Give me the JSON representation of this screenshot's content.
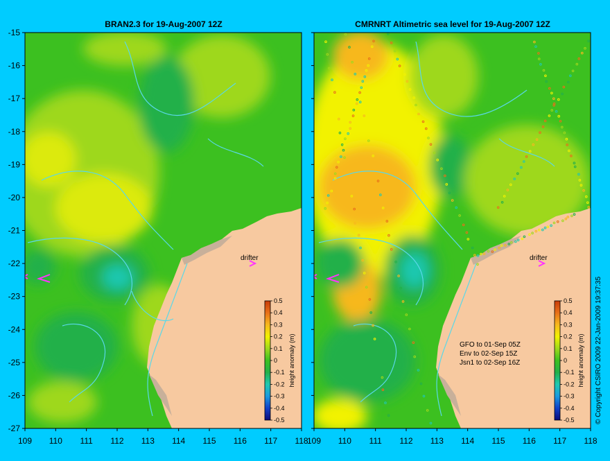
{
  "panels": [
    {
      "title": "BRAN2.3 for 19-Aug-2007 12Z",
      "drifter_label": "drifter",
      "has_obs": false
    },
    {
      "title": "CMRNRT Altimetric sea level  for 19-Aug-2007 12Z",
      "drifter_label": "drifter",
      "has_obs": true,
      "satellite_notes": [
        "GFO to 01-Sep 05Z",
        "Env to 02-Sep 15Z",
        "Jsn1 to 02-Sep 16Z"
      ]
    }
  ],
  "axes": {
    "lon_ticks": [
      "109",
      "110",
      "111",
      "112",
      "113",
      "114",
      "115",
      "116",
      "117",
      "118"
    ],
    "lat_ticks": [
      "-15",
      "-16",
      "-17",
      "-18",
      "-19",
      "-20",
      "-21",
      "-22",
      "-23",
      "-24",
      "-25",
      "-26",
      "-27"
    ],
    "lon_range": [
      109,
      118
    ],
    "lat_range": [
      -15,
      -27
    ]
  },
  "colorbar": {
    "label": "height anomaly (m)",
    "ticks": [
      "0.5",
      "0.4",
      "0.3",
      "0.2",
      "0.1",
      "0",
      "-0.1",
      "-0.2",
      "-0.3",
      "-0.4",
      "-0.5"
    ],
    "colors": [
      "#0b0b7a",
      "#1140c8",
      "#1a9adf",
      "#1fc8b0",
      "#23b04a",
      "#3cc020",
      "#9ed81c",
      "#f2f200",
      "#f7b81e",
      "#e8701a",
      "#c83c08"
    ]
  },
  "copyright": "© Copyright CSIRO 2009   22-Jan-2009 19:37:35",
  "colors": {
    "background": "#00ccff",
    "land": "#f7c9a0",
    "shelf": "#c8b09a",
    "drifter": "#ff33ff",
    "contour": "#5ad8e8"
  }
}
